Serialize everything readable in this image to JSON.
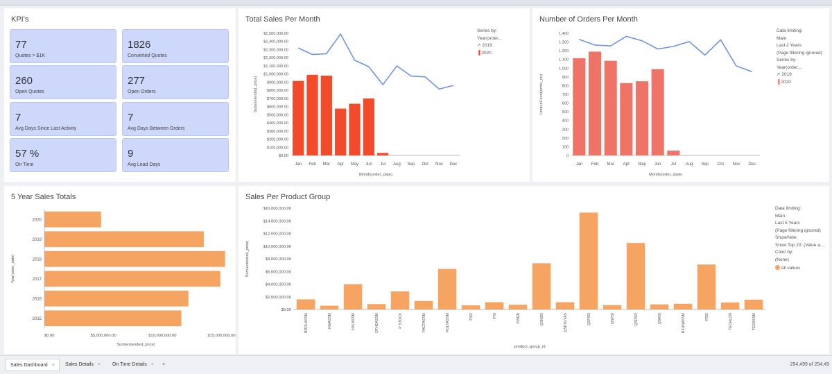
{
  "kpi": {
    "title": "KPI's",
    "cards": [
      {
        "value": "77",
        "label": "Quotes > $1K"
      },
      {
        "value": "1826",
        "label": "Converted Quotes"
      },
      {
        "value": "260",
        "label": "Open Quotes"
      },
      {
        "value": "277",
        "label": "Open Orders"
      },
      {
        "value": "7",
        "label": "Avg Days Since Last Activity"
      },
      {
        "value": "7",
        "label": "Avg Days Between Orders"
      },
      {
        "value": "57 %",
        "label": "On Time"
      },
      {
        "value": "9",
        "label": "Avg Lead Days"
      }
    ]
  },
  "legends": {
    "sales_month": [
      "Series by:",
      "Year(order...",
      "2019",
      "2020"
    ],
    "orders_month": [
      "Data limiting:",
      "Main",
      "Last 2 Years",
      "(Page filtering ignored)",
      "Series by:",
      "Year(order...",
      "2019",
      "2020"
    ],
    "product": [
      "Data limiting:",
      "Main",
      "Last 5 Years",
      "(Page filtering ignored)",
      "Show/hide:",
      "Show Top 20: (Value a...",
      "Color by:",
      "(None)",
      "All values"
    ]
  },
  "colors": {
    "line_2019": "#6f93e6",
    "bar_2020_sales": "#f24a2a",
    "bar_2020_orders": "#f07368",
    "bar_orange": "#f5a462",
    "kpi_card": "#cdd8fb"
  },
  "tabs": [
    {
      "label": "Sales Dashboard",
      "active": true,
      "closable": true
    },
    {
      "label": "Sales Details",
      "active": false,
      "closable": true
    },
    {
      "label": "On Time Details",
      "active": false,
      "closable": true
    },
    {
      "label": "+",
      "active": false,
      "closable": false
    }
  ],
  "status": {
    "row_count": "254,499 of 254,49"
  },
  "chart_data": [
    {
      "id": "sales_month",
      "type": "bar",
      "title": "Total Sales Per Month",
      "xlabel": "Month(order_date)",
      "ylabel": "Sum(extended_price)",
      "categories": [
        "Jan",
        "Feb",
        "Mar",
        "Apr",
        "May",
        "Jun",
        "Jul",
        "Aug",
        "Sep",
        "Oct",
        "Nov",
        "Dec"
      ],
      "ylim": [
        0,
        1500000
      ],
      "yticks": [
        "$0.00",
        "$100,000.00",
        "$200,000.00",
        "$300,000.00",
        "$400,000.00",
        "$500,000.00",
        "$600,000.00",
        "$700,000.00",
        "$800,000.00",
        "$900,000.00",
        "$1,000,000.00",
        "$1,100,000.00",
        "$1,200,000.00",
        "$1,300,000.00",
        "$1,400,000.00",
        "$1,500,000.00"
      ],
      "series": [
        {
          "name": "2020",
          "kind": "bar",
          "values": [
            915000,
            990000,
            980000,
            575000,
            635000,
            700000,
            30000,
            null,
            null,
            null,
            null,
            null
          ]
        },
        {
          "name": "2019",
          "kind": "line",
          "values": [
            1320000,
            1240000,
            1250000,
            1490000,
            1170000,
            1090000,
            870000,
            1100000,
            975000,
            965000,
            815000,
            860000
          ]
        }
      ],
      "legend": "right"
    },
    {
      "id": "orders_month",
      "type": "bar",
      "title": "Number of Orders Per Month",
      "xlabel": "Month(order_date)",
      "ylabel": "UniqueCount(order_no)",
      "categories": [
        "Jan",
        "Feb",
        "Mar",
        "Apr",
        "May",
        "Jun",
        "Jul",
        "Aug",
        "Sep",
        "Oct",
        "Nov",
        "Dec"
      ],
      "ylim": [
        0,
        1400
      ],
      "yticks": [
        "0",
        "100",
        "200",
        "300",
        "400",
        "500",
        "600",
        "700",
        "800",
        "900",
        "1,000",
        "1,100",
        "1,200",
        "1,300",
        "1,400"
      ],
      "series": [
        {
          "name": "2020",
          "kind": "bar",
          "values": [
            1115,
            1190,
            1085,
            830,
            850,
            990,
            55,
            null,
            null,
            null,
            null,
            null
          ]
        },
        {
          "name": "2019",
          "kind": "line",
          "values": [
            1330,
            1265,
            1255,
            1365,
            1315,
            1220,
            1250,
            1305,
            1150,
            1325,
            1025,
            960
          ]
        }
      ],
      "legend": "right"
    },
    {
      "id": "five_year",
      "type": "bar",
      "orientation": "horizontal",
      "title": "5 Year Sales Totals",
      "xlabel": "Sum(extended_price)",
      "ylabel": "Year(order_date)",
      "categories": [
        "2020",
        "2019",
        "2018",
        "2017",
        "2016",
        "2015"
      ],
      "values": [
        4800000,
        13500000,
        15300000,
        14900000,
        12200000,
        11600000
      ],
      "xlim": [
        0,
        15500000
      ],
      "xticks": [
        "$0.00",
        "$5,000,000.00",
        "$10,000,000.00",
        "$15,000,000.00"
      ]
    },
    {
      "id": "product",
      "type": "bar",
      "title": "Sales Per Product Group",
      "xlabel": "product_group_id",
      "ylabel": "Sum(extended_price)",
      "categories": [
        "BROLASSM",
        "HWASSM",
        "NYLASSM",
        "OTHEASSM",
        "P STOCK",
        "PACFASSM",
        "POLYASSM",
        "PSD",
        "PSI",
        "PWEB",
        "QSNSD",
        "QSPOLYAS",
        "QSPSD",
        "QSPSI",
        "QSRSD",
        "QSRSI",
        "RXUNASSM",
        "RSD",
        "TECHLON",
        "TEDASSM"
      ],
      "values": [
        1600000,
        600000,
        4000000,
        850000,
        2850000,
        1350000,
        6400000,
        650000,
        1150000,
        750000,
        7300000,
        1150000,
        15300000,
        700000,
        10500000,
        800000,
        900000,
        7100000,
        1100000,
        1550000
      ],
      "ylim": [
        0,
        16000000
      ],
      "yticks": [
        "$0.00",
        "$2,000,000.00",
        "$4,000,000.00",
        "$6,000,000.00",
        "$8,000,000.00",
        "$10,000,000.00",
        "$12,000,000.00",
        "$14,000,000.00",
        "$16,000,000.00"
      ],
      "series_name": "All values",
      "legend": "right"
    }
  ]
}
